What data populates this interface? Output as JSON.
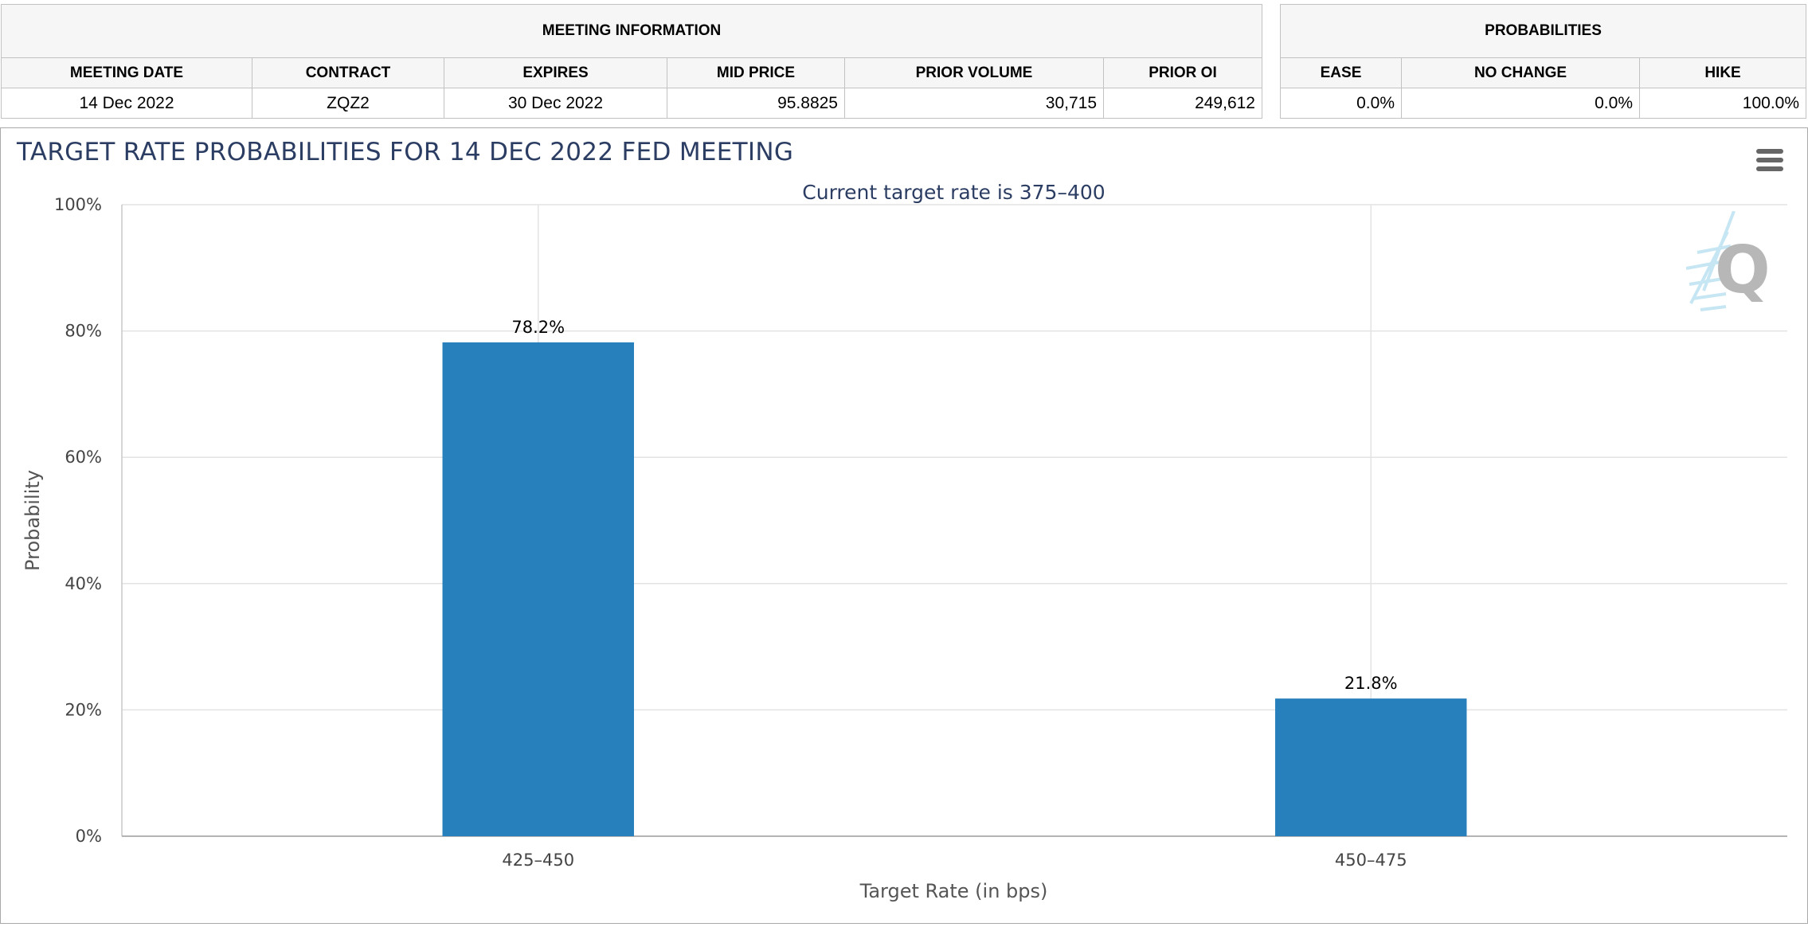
{
  "meeting_info": {
    "title": "MEETING INFORMATION",
    "headers": [
      "MEETING DATE",
      "CONTRACT",
      "EXPIRES",
      "MID PRICE",
      "PRIOR VOLUME",
      "PRIOR OI"
    ],
    "row": [
      "14 Dec 2022",
      "ZQZ2",
      "30 Dec 2022",
      "95.8825",
      "30,715",
      "249,612"
    ]
  },
  "probabilities": {
    "title": "PROBABILITIES",
    "headers": [
      "EASE",
      "NO CHANGE",
      "HIKE"
    ],
    "row": [
      "0.0%",
      "0.0%",
      "100.0%"
    ]
  },
  "chart": {
    "menu_icon": "hamburger-menu-icon",
    "watermark_icon": "cme-q-logo",
    "bar_color": "#2780bb",
    "title_color": "#2b3d63"
  },
  "chart_data": {
    "type": "bar",
    "title": "TARGET RATE PROBABILITIES FOR 14 DEC 2022 FED MEETING",
    "subtitle": "Current target rate is 375–400",
    "xlabel": "Target Rate (in bps)",
    "ylabel": "Probability",
    "categories": [
      "425–450",
      "450–475"
    ],
    "values": [
      78.2,
      21.8
    ],
    "data_labels": [
      "78.2%",
      "21.8%"
    ],
    "ylim": [
      0,
      100
    ],
    "yticks": [
      0,
      20,
      40,
      60,
      80,
      100
    ],
    "ytick_labels": [
      "0%",
      "20%",
      "40%",
      "60%",
      "80%",
      "100%"
    ],
    "grid": true,
    "legend": false
  }
}
